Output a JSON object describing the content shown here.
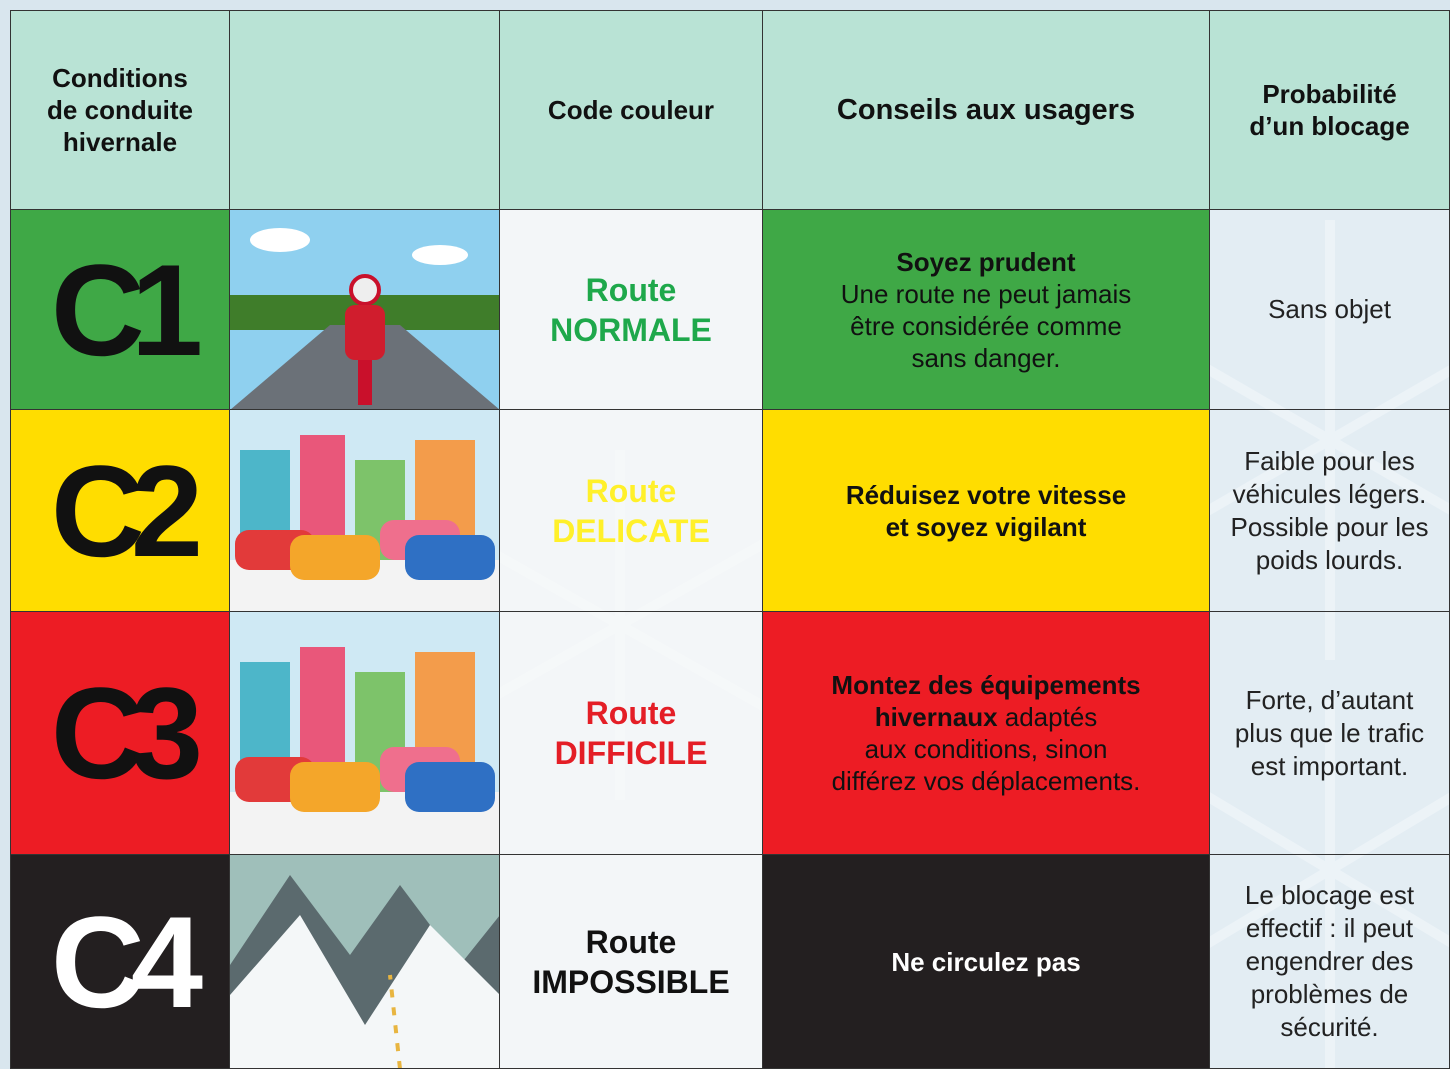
{
  "header": {
    "conditions": [
      "Conditions",
      "de conduite",
      "hivernale"
    ],
    "code": [
      "Code couleur"
    ],
    "advice": [
      "Conseils aux usagers"
    ],
    "probability": [
      "Probabilité",
      "d’un blocage"
    ]
  },
  "rows": [
    {
      "level": "C1",
      "color": "#3fa846",
      "level_text_color": "#111111",
      "code": [
        "Route",
        "NORMALE"
      ],
      "code_color": "#1ea84b",
      "advice_color": "#111111",
      "advice": [
        [
          {
            "text": "Soyez prudent",
            "bold": true
          }
        ],
        [
          {
            "text": "Une route ne peut jamais",
            "bold": false
          }
        ],
        [
          {
            "text": "être considérée comme",
            "bold": false
          }
        ],
        [
          {
            "text": "sans danger.",
            "bold": false
          }
        ]
      ],
      "probability": [
        "Sans objet"
      ]
    },
    {
      "level": "C2",
      "color": "#ffdd00",
      "level_text_color": "#111111",
      "code": [
        "Route",
        "DELICATE"
      ],
      "code_color": "#fff02a",
      "advice_color": "#111111",
      "advice": [
        [
          {
            "text": "Réduisez votre vitesse",
            "bold": true
          }
        ],
        [
          {
            "text": "et soyez vigilant",
            "bold": true
          }
        ]
      ],
      "probability": [
        "Faible pour les",
        "véhicules légers.",
        "Possible pour les",
        "poids lourds."
      ]
    },
    {
      "level": "C3",
      "color": "#ed1c24",
      "level_text_color": "#111111",
      "code": [
        "Route",
        "DIFFICILE"
      ],
      "code_color": "#e41e26",
      "advice_color": "#111111",
      "advice": [
        [
          {
            "text": "Montez des équipements",
            "bold": true
          }
        ],
        [
          {
            "text": "hivernaux",
            "bold": true
          },
          {
            "text": " adaptés",
            "bold": false
          }
        ],
        [
          {
            "text": "aux conditions, sinon",
            "bold": false
          }
        ],
        [
          {
            "text": "différez vos déplacements.",
            "bold": false
          }
        ]
      ],
      "probability": [
        "Forte, d’autant",
        "plus que le trafic",
        "est important."
      ]
    },
    {
      "level": "C4",
      "color": "#231f20",
      "level_text_color": "#ffffff",
      "code": [
        "Route",
        "IMPOSSIBLE"
      ],
      "code_color": "#111111",
      "advice_color": "#ffffff",
      "advice": [
        [
          {
            "text": "Ne circulez pas",
            "bold": true
          }
        ]
      ],
      "probability": [
        "Le blocage est",
        "effectif : il peut",
        "engendrer des",
        "problèmes de",
        "sécurité."
      ]
    }
  ]
}
